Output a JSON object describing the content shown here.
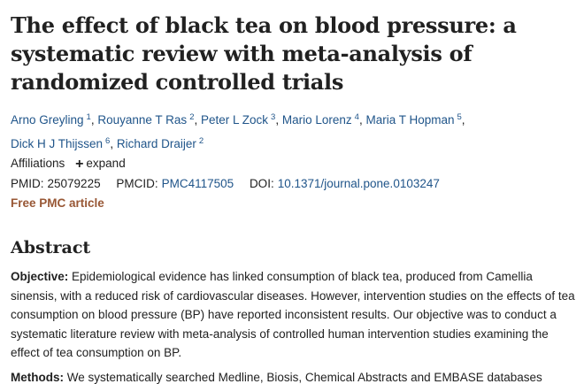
{
  "article": {
    "title": "The effect of black tea on blood pressure: a systematic review with meta-analysis of randomized controlled trials"
  },
  "authors": [
    {
      "name": "Arno Greyling",
      "aff": "1"
    },
    {
      "name": "Rouyanne T Ras",
      "aff": "2"
    },
    {
      "name": "Peter L Zock",
      "aff": "3"
    },
    {
      "name": "Mario Lorenz",
      "aff": "4"
    },
    {
      "name": "Maria T Hopman",
      "aff": "5"
    },
    {
      "name": "Dick H J Thijssen",
      "aff": "6"
    },
    {
      "name": "Richard Draijer",
      "aff": "2"
    }
  ],
  "affiliations": {
    "label": "Affiliations",
    "expand_label": "expand"
  },
  "identifiers": {
    "pmid_label": "PMID:",
    "pmid": "25079225",
    "pmcid_label": "PMCID:",
    "pmcid": "PMC4117505",
    "doi_label": "DOI:",
    "doi": "10.1371/journal.pone.0103247"
  },
  "free_pmc_label": "Free PMC article",
  "abstract": {
    "heading": "Abstract",
    "sections": [
      {
        "label": "Objective:",
        "text": "Epidemiological evidence has linked consumption of black tea, produced from Camellia sinensis, with a reduced risk of cardiovascular diseases. However, intervention studies on the effects of tea consumption on blood pressure (BP) have reported inconsistent results. Our objective was to conduct a systematic literature review with meta-analysis of controlled human intervention studies examining the effect of tea consumption on BP."
      },
      {
        "label": "Methods:",
        "text": "We systematically searched Medline, Biosis, Chemical Abstracts and EMBASE databases"
      }
    ]
  }
}
